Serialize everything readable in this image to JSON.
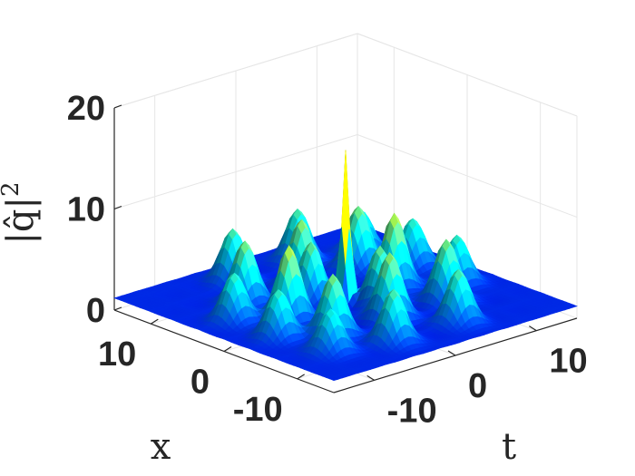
{
  "chart_data": {
    "type": "surface3d",
    "title": "",
    "xlabel": "x",
    "tlabel": "t",
    "zlabel": "|q̂|²",
    "zlabel_base": "|q̂|",
    "zlabel_exp": "2",
    "x_range": [
      -15,
      15
    ],
    "t_range": [
      -15,
      15
    ],
    "z_range": [
      0,
      20
    ],
    "x_ticks": [
      {
        "value": -10,
        "label": "-10"
      },
      {
        "value": 0,
        "label": "0"
      },
      {
        "value": 10,
        "label": "10"
      }
    ],
    "t_ticks": [
      {
        "value": -10,
        "label": "-10"
      },
      {
        "value": 0,
        "label": "0"
      },
      {
        "value": 10,
        "label": "10"
      }
    ],
    "z_ticks": [
      {
        "value": 0,
        "label": "0"
      },
      {
        "value": 10,
        "label": "10"
      },
      {
        "value": 20,
        "label": "20"
      }
    ],
    "background_level": 1.2,
    "central_peak": {
      "x": 0,
      "t": 0,
      "height": 16
    },
    "peaks": [
      {
        "x": -6,
        "t": -7,
        "height": 7.5
      },
      {
        "x": -6,
        "t": 0,
        "height": 8
      },
      {
        "x": -6,
        "t": 7,
        "height": 7.5
      },
      {
        "x": 0,
        "t": -7,
        "height": 8.5
      },
      {
        "x": 0,
        "t": 6,
        "height": 8.5
      },
      {
        "x": 6,
        "t": -7,
        "height": 7.5
      },
      {
        "x": 6,
        "t": 0,
        "height": 8
      },
      {
        "x": 6,
        "t": 7,
        "height": 7.5
      },
      {
        "x": -11,
        "t": -4,
        "height": 6.5
      },
      {
        "x": -11,
        "t": 4,
        "height": 6.5
      },
      {
        "x": 11,
        "t": -4,
        "height": 6.5
      },
      {
        "x": 11,
        "t": 4,
        "height": 6.5
      },
      {
        "x": -3,
        "t": -11,
        "height": 6
      },
      {
        "x": 3,
        "t": 11,
        "height": 6
      },
      {
        "x": 3,
        "t": -11,
        "height": 6
      },
      {
        "x": -3,
        "t": 11,
        "height": 6
      },
      {
        "x": -2.5,
        "t": 2,
        "height": 7
      },
      {
        "x": 2.5,
        "t": -2,
        "height": 7
      },
      {
        "x": 9,
        "t": 10,
        "height": 5.5
      },
      {
        "x": -9,
        "t": -10,
        "height": 5.5
      }
    ],
    "colormap": "jet",
    "grid": true
  }
}
